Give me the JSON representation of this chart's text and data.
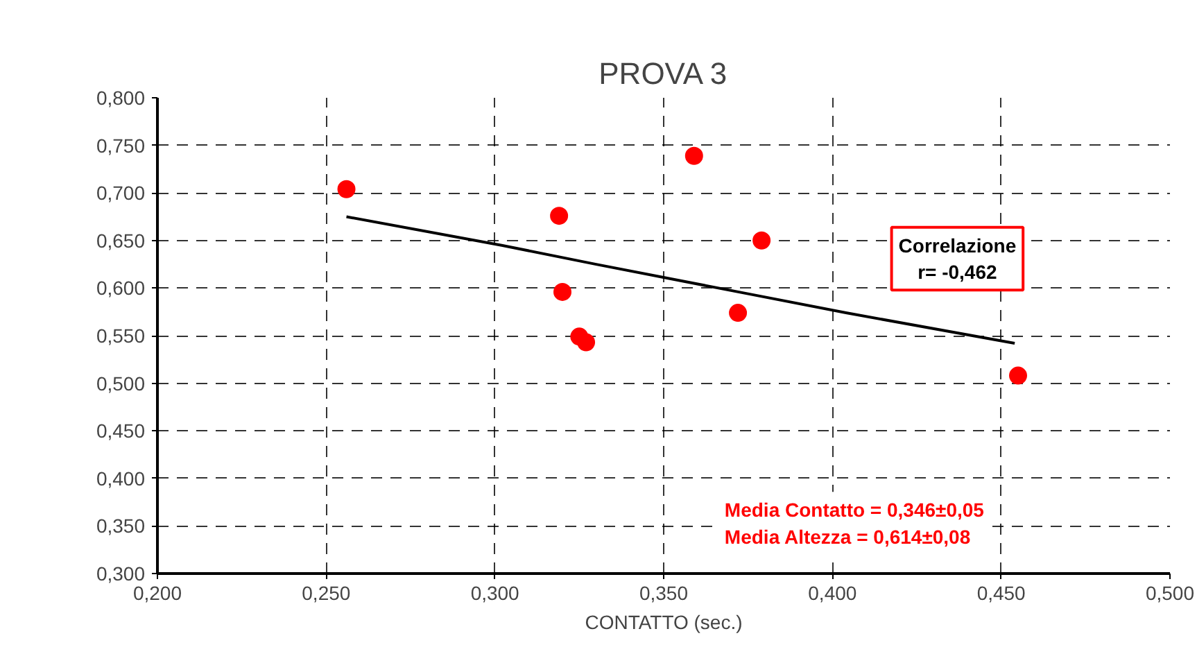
{
  "chart_data": {
    "type": "scatter",
    "title": "PROVA 3",
    "xlabel": "CONTATTO (sec.)",
    "xlim": [
      0.2,
      0.5
    ],
    "ylim": [
      0.3,
      0.8
    ],
    "xticks": [
      {
        "value": 0.2,
        "label": "0,200"
      },
      {
        "value": 0.25,
        "label": "0,250"
      },
      {
        "value": 0.3,
        "label": "0,300"
      },
      {
        "value": 0.35,
        "label": "0,350"
      },
      {
        "value": 0.4,
        "label": "0,400"
      },
      {
        "value": 0.45,
        "label": "0,450"
      },
      {
        "value": 0.5,
        "label": "0,500"
      }
    ],
    "yticks": [
      {
        "value": 0.3,
        "label": "0,300"
      },
      {
        "value": 0.35,
        "label": "0,350"
      },
      {
        "value": 0.4,
        "label": "0,400"
      },
      {
        "value": 0.45,
        "label": "0,450"
      },
      {
        "value": 0.5,
        "label": "0,500"
      },
      {
        "value": 0.55,
        "label": "0,550"
      },
      {
        "value": 0.6,
        "label": "0,600"
      },
      {
        "value": 0.65,
        "label": "0,650"
      },
      {
        "value": 0.7,
        "label": "0,700"
      },
      {
        "value": 0.75,
        "label": "0,750"
      },
      {
        "value": 0.8,
        "label": "0,800"
      }
    ],
    "grid": true,
    "marker": "circle",
    "series": [
      {
        "color": "#ff0000",
        "x": [
          0.256,
          0.359,
          0.319,
          0.379,
          0.32,
          0.372,
          0.325,
          0.327,
          0.455
        ],
        "values": [
          0.704,
          0.739,
          0.676,
          0.65,
          0.596,
          0.574,
          0.549,
          0.543,
          0.508
        ]
      },
      {
        "type": "line",
        "color": "#000000",
        "line_style": "solid",
        "marker": "none",
        "x": [
          0.256,
          0.302,
          0.33,
          0.375,
          0.404,
          0.454
        ],
        "values": [
          0.675,
          0.645,
          0.625,
          0.594,
          0.574,
          0.542
        ]
      }
    ],
    "annotations": [
      "Correlazione\nr= -0,462",
      "Media Contatto = 0,346±0,05\nMedia Altezza = 0,614±0,08"
    ]
  }
}
